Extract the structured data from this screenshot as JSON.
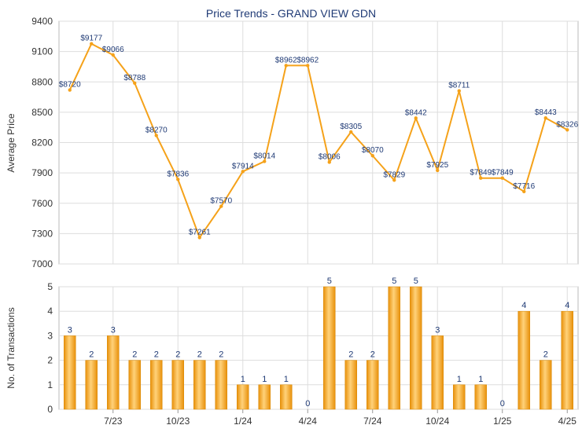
{
  "chart_data": [
    {
      "type": "line",
      "title": "Price Trends - GRAND VIEW GDN",
      "ylabel": "Average Price",
      "ylim": [
        7000,
        9400
      ],
      "yticks": [
        7000,
        7300,
        7600,
        7900,
        8200,
        8500,
        8800,
        9100,
        9400
      ],
      "xticklabels": [
        "7/23",
        "10/23",
        "1/24",
        "4/24",
        "7/24",
        "10/24",
        "1/25",
        "4/25"
      ],
      "color": "#f5a21a",
      "points": [
        {
          "x": 0,
          "y": 8720,
          "label": "$8720"
        },
        {
          "x": 1,
          "y": 9177,
          "label": "$9177"
        },
        {
          "x": 2,
          "y": 9066,
          "label": "$9066"
        },
        {
          "x": 3,
          "y": 8788,
          "label": "$8788"
        },
        {
          "x": 4,
          "y": 8270,
          "label": "$8270"
        },
        {
          "x": 5,
          "y": 7836,
          "label": "$7836"
        },
        {
          "x": 6,
          "y": 7261,
          "label": "$7261"
        },
        {
          "x": 7,
          "y": 7570,
          "label": "$7570"
        },
        {
          "x": 8,
          "y": 7914,
          "label": "$7914"
        },
        {
          "x": 9,
          "y": 8014,
          "label": "$8014"
        },
        {
          "x": 10,
          "y": 8962,
          "label": "$8962"
        },
        {
          "x": 11,
          "y": 8962,
          "label": "$8962"
        },
        {
          "x": 12,
          "y": 8006,
          "label": "$8006"
        },
        {
          "x": 13,
          "y": 8305,
          "label": "$8305"
        },
        {
          "x": 14,
          "y": 8070,
          "label": "$8070"
        },
        {
          "x": 15,
          "y": 7829,
          "label": "$7829"
        },
        {
          "x": 16,
          "y": 8442,
          "label": "$8442"
        },
        {
          "x": 17,
          "y": 7925,
          "label": "$7925"
        },
        {
          "x": 18,
          "y": 8711,
          "label": "$8711"
        },
        {
          "x": 19,
          "y": 7849,
          "label": "$7849"
        },
        {
          "x": 20,
          "y": 7849,
          "label": "$7849"
        },
        {
          "x": 21,
          "y": 7716,
          "label": "$7716"
        },
        {
          "x": 22,
          "y": 8443,
          "label": "$8443"
        },
        {
          "x": 23,
          "y": 8326,
          "label": "$8326"
        }
      ]
    },
    {
      "type": "bar",
      "ylabel": "No. of Transactions",
      "ylim": [
        0,
        5
      ],
      "yticks": [
        0,
        1,
        2,
        3,
        4,
        5
      ],
      "xticklabels": [
        "7/23",
        "10/23",
        "1/24",
        "4/24",
        "7/24",
        "10/24",
        "1/25",
        "4/25"
      ],
      "color": "#f0a01e",
      "values": [
        3,
        2,
        3,
        2,
        2,
        2,
        2,
        2,
        1,
        1,
        1,
        0,
        5,
        2,
        2,
        5,
        5,
        3,
        1,
        1,
        0,
        4,
        2,
        4
      ]
    }
  ]
}
